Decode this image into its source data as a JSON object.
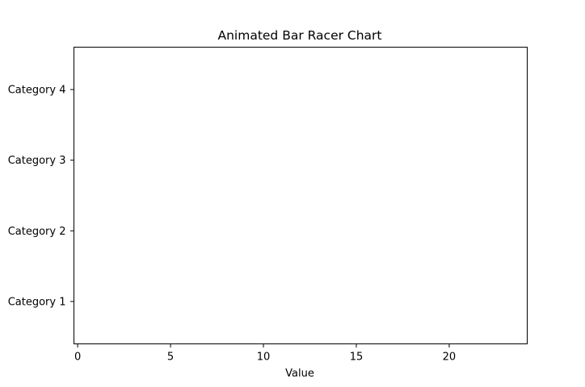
{
  "chart_data": {
    "type": "bar",
    "orientation": "horizontal",
    "title": "Animated Bar Racer Chart",
    "xlabel": "Value",
    "ylabel": "",
    "categories": [
      "Category 1",
      "Category 2",
      "Category 3",
      "Category 4"
    ],
    "values": [
      0,
      0,
      0,
      0
    ],
    "xlim": [
      -0.2,
      24.2
    ],
    "xticks": [
      0,
      5,
      10,
      15,
      20
    ],
    "grid": false,
    "legend": "none"
  }
}
